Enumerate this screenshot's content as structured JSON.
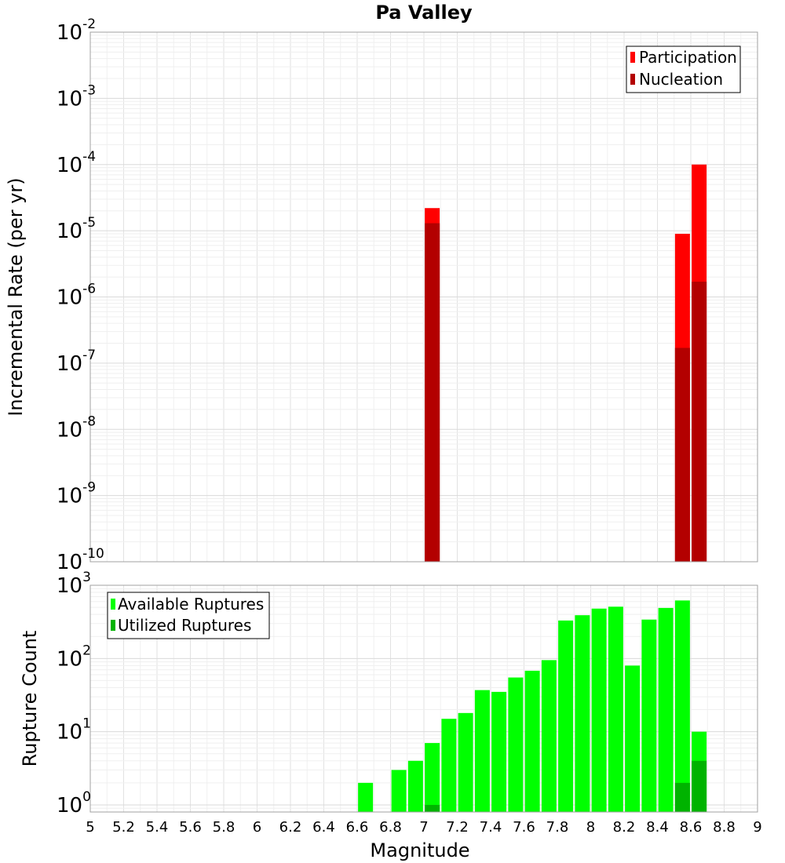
{
  "chart_data": [
    {
      "type": "bar",
      "title": "Pa Valley",
      "xlabel": "",
      "ylabel": "Incremental Rate (per yr)",
      "yscale": "log",
      "ylim": [
        1e-10,
        0.01
      ],
      "xlim": [
        5,
        9
      ],
      "y_tick_labels": [
        {
          "base": "10",
          "exp": "-10"
        },
        {
          "base": "10",
          "exp": "-9"
        },
        {
          "base": "10",
          "exp": "-8"
        },
        {
          "base": "10",
          "exp": "-7"
        },
        {
          "base": "10",
          "exp": "-6"
        },
        {
          "base": "10",
          "exp": "-5"
        },
        {
          "base": "10",
          "exp": "-4"
        },
        {
          "base": "10",
          "exp": "-3"
        },
        {
          "base": "10",
          "exp": "-2"
        }
      ],
      "grid": true,
      "legend_position": "top-right",
      "series": [
        {
          "name": "Participation",
          "color": "#ff0000",
          "x": [
            7.05,
            8.55,
            8.65
          ],
          "values": [
            2.2e-05,
            9e-06,
            0.0001
          ]
        },
        {
          "name": "Nucleation",
          "color": "#b30000",
          "x": [
            7.05,
            8.55,
            8.65
          ],
          "values": [
            1.3e-05,
            1.7e-07,
            1.7e-06
          ]
        }
      ]
    },
    {
      "type": "bar",
      "title": "",
      "xlabel": "Magnitude",
      "ylabel": "Rupture Count",
      "yscale": "log",
      "ylim": [
        0.8,
        1000
      ],
      "xlim": [
        5,
        9
      ],
      "x_tick_labels": [
        "5",
        "5.2",
        "5.4",
        "5.6",
        "5.8",
        "6",
        "6.2",
        "6.4",
        "6.6",
        "6.8",
        "7",
        "7.2",
        "7.4",
        "7.6",
        "7.8",
        "8",
        "8.2",
        "8.4",
        "8.6",
        "8.8",
        "9"
      ],
      "y_tick_labels": [
        {
          "base": "10",
          "exp": "0"
        },
        {
          "base": "10",
          "exp": "1"
        },
        {
          "base": "10",
          "exp": "2"
        },
        {
          "base": "10",
          "exp": "3"
        }
      ],
      "grid": true,
      "legend_position": "top-left",
      "series": [
        {
          "name": "Available Ruptures",
          "color": "#00ff00",
          "x": [
            6.65,
            6.85,
            6.95,
            7.05,
            7.15,
            7.25,
            7.35,
            7.45,
            7.55,
            7.65,
            7.75,
            7.85,
            7.95,
            8.05,
            8.15,
            8.25,
            8.35,
            8.45,
            8.55,
            8.65
          ],
          "values": [
            2,
            3,
            4,
            7,
            15,
            18,
            37,
            35,
            55,
            68,
            95,
            330,
            390,
            480,
            510,
            80,
            340,
            490,
            620,
            10
          ]
        },
        {
          "name": "Utilized Ruptures",
          "color": "#00b300",
          "x": [
            7.05,
            8.55,
            8.65
          ],
          "values": [
            1,
            2,
            4
          ]
        }
      ]
    }
  ]
}
